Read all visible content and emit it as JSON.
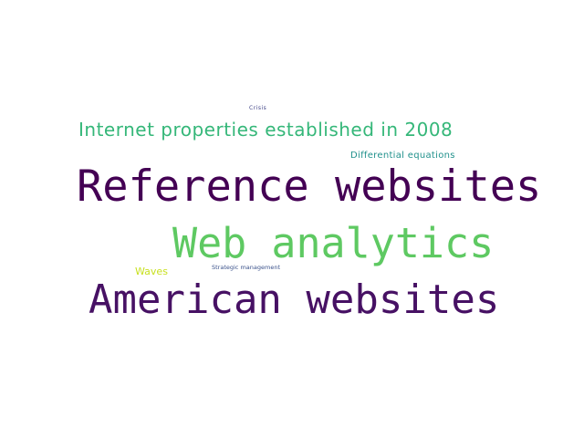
{
  "words": {
    "reference_websites": {
      "text": "Reference websites",
      "color": "#440154"
    },
    "american_websites": {
      "text": "American websites",
      "color": "#471164"
    },
    "web_analytics": {
      "text": "Web analytics",
      "color": "#5ec962"
    },
    "internet_properties": {
      "text": "Internet properties established in 2008",
      "color": "#35b779"
    },
    "differential_equations": {
      "text": "Differential equations",
      "color": "#21918c"
    },
    "waves": {
      "text": "Waves",
      "color": "#c8e020"
    },
    "strategic_management": {
      "text": "Strategic management",
      "color": "#3b528b"
    },
    "crisis": {
      "text": "Crisis",
      "color": "#414487"
    }
  }
}
